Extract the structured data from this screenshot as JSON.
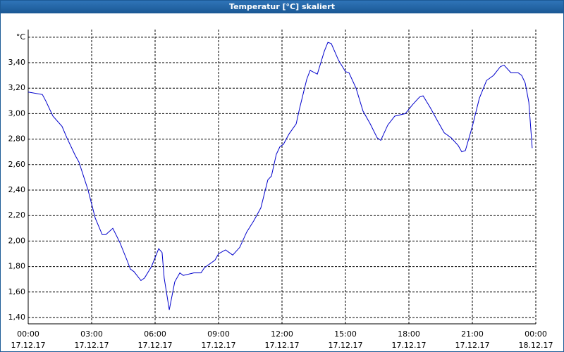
{
  "chart_data": {
    "type": "line",
    "title": "Temperatur [°C] skaliert",
    "x": [
      0,
      0.67,
      0.83,
      1.17,
      1.6,
      1.83,
      2.23,
      2.4,
      2.83,
      3.17,
      3.5,
      3.67,
      4.0,
      4.33,
      4.67,
      4.83,
      5.0,
      5.33,
      5.5,
      5.83,
      6.17,
      6.33,
      6.43,
      6.67,
      6.93,
      7.17,
      7.33,
      7.83,
      8.17,
      8.33,
      8.83,
      9.0,
      9.33,
      9.67,
      10.0,
      10.33,
      10.67,
      11.0,
      11.33,
      11.5,
      11.73,
      11.9,
      12.07,
      12.33,
      12.67,
      12.83,
      13.17,
      13.33,
      13.67,
      14.0,
      14.17,
      14.33,
      14.67,
      15.0,
      15.17,
      15.5,
      15.83,
      16.17,
      16.5,
      16.67,
      17.0,
      17.33,
      17.83,
      18.17,
      18.5,
      18.67,
      19.0,
      19.33,
      19.67,
      20.0,
      20.33,
      20.5,
      20.67,
      21.0,
      21.33,
      21.67,
      22.0,
      22.33,
      22.5,
      22.83,
      23.17,
      23.33,
      23.5,
      23.67,
      23.83
    ],
    "series": [
      {
        "name": "Temperatur",
        "color": "#0000cc",
        "values": [
          3.17,
          3.15,
          3.1,
          2.98,
          2.9,
          2.81,
          2.67,
          2.62,
          2.4,
          2.18,
          2.05,
          2.05,
          2.1,
          1.99,
          1.85,
          1.78,
          1.76,
          1.69,
          1.71,
          1.8,
          1.94,
          1.91,
          1.71,
          1.46,
          1.68,
          1.75,
          1.73,
          1.75,
          1.75,
          1.79,
          1.85,
          1.9,
          1.93,
          1.89,
          1.95,
          2.07,
          2.16,
          2.26,
          2.48,
          2.51,
          2.68,
          2.74,
          2.76,
          2.84,
          2.92,
          3.04,
          3.27,
          3.34,
          3.31,
          3.49,
          3.56,
          3.55,
          3.42,
          3.33,
          3.32,
          3.2,
          3.02,
          2.92,
          2.81,
          2.79,
          2.91,
          2.98,
          3.0,
          3.07,
          3.13,
          3.14,
          3.05,
          2.95,
          2.85,
          2.81,
          2.75,
          2.7,
          2.71,
          2.9,
          3.12,
          3.26,
          3.3,
          3.37,
          3.38,
          3.32,
          3.32,
          3.3,
          3.24,
          3.09,
          2.73
        ]
      }
    ],
    "xlim": [
      0,
      24
    ],
    "xticks": [
      {
        "value": 0,
        "label": "00:00",
        "date": "17.12.17"
      },
      {
        "value": 3,
        "label": "03:00",
        "date": "17.12.17"
      },
      {
        "value": 6,
        "label": "06:00",
        "date": "17.12.17"
      },
      {
        "value": 9,
        "label": "09:00",
        "date": "17.12.17"
      },
      {
        "value": 12,
        "label": "12:00",
        "date": "17.12.17"
      },
      {
        "value": 15,
        "label": "15:00",
        "date": "17.12.17"
      },
      {
        "value": 18,
        "label": "18:00",
        "date": "17.12.17"
      },
      {
        "value": 21,
        "label": "21:00",
        "date": "17.12.17"
      },
      {
        "value": 24,
        "label": "00:00",
        "date": "18.12.17"
      }
    ],
    "ylim": [
      1.35,
      3.66
    ],
    "yticks": [
      {
        "value": 1.4,
        "label": "1,40"
      },
      {
        "value": 1.6,
        "label": "1,60"
      },
      {
        "value": 1.8,
        "label": "1,80"
      },
      {
        "value": 2.0,
        "label": "2,00"
      },
      {
        "value": 2.2,
        "label": "2,20"
      },
      {
        "value": 2.4,
        "label": "2,40"
      },
      {
        "value": 2.6,
        "label": "2,60"
      },
      {
        "value": 2.8,
        "label": "2,80"
      },
      {
        "value": 3.0,
        "label": "3,00"
      },
      {
        "value": 3.2,
        "label": "3,20"
      },
      {
        "value": 3.4,
        "label": "3,40"
      },
      {
        "value": 3.6,
        "label": "°C"
      }
    ],
    "grid": true
  }
}
